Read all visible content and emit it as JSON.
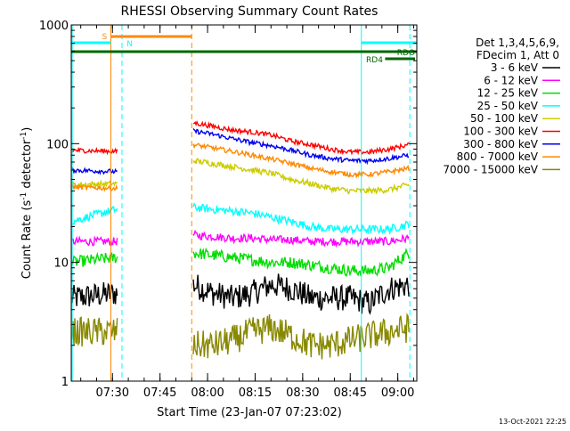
{
  "chart_data": {
    "type": "line",
    "title": "RHESSI Observing Summary Count Rates",
    "xlabel": "Start Time (23-Jan-07 07:23:02)",
    "ylabel_main": "Count Rate (s",
    "ylabel_sup1": "-1",
    "ylabel_mid": " detector",
    "ylabel_sup2": "-1",
    "ylabel_end": ")",
    "y_scale": "log",
    "ylim": [
      1,
      1000
    ],
    "xlim_minutes": [
      437,
      546
    ],
    "x_ticks": [
      {
        "minute": 450,
        "label": "07:30"
      },
      {
        "minute": 465,
        "label": "07:45"
      },
      {
        "minute": 480,
        "label": "08:00"
      },
      {
        "minute": 495,
        "label": "08:15"
      },
      {
        "minute": 510,
        "label": "08:30"
      },
      {
        "minute": 525,
        "label": "08:45"
      },
      {
        "minute": 540,
        "label": "09:00"
      }
    ],
    "y_ticks": [
      {
        "value": 1,
        "label": "1"
      },
      {
        "value": 10,
        "label": "10"
      },
      {
        "value": 100,
        "label": "100"
      },
      {
        "value": 1000,
        "label": "1000"
      }
    ],
    "legend_header": [
      "Det 1,3,4,5,6,9,",
      "FDecim 1, Att 0"
    ],
    "legend_placement": "right",
    "series": [
      {
        "name": "3 - 6 keV",
        "color": "#000000",
        "pre": [
          5,
          5.5
        ],
        "post": [
          6.5,
          5.5,
          5.0,
          5.5,
          6.5,
          6.0,
          5.0,
          5.0,
          5.0,
          4.5,
          6.0,
          6.5
        ],
        "noise": 0.22
      },
      {
        "name": "6 - 12 keV",
        "color": "#ff00ff",
        "pre": [
          15,
          15
        ],
        "post": [
          17,
          16.5,
          16,
          16,
          15.5,
          15.5,
          15,
          15,
          15,
          15,
          15,
          16
        ],
        "noise": 0.07
      },
      {
        "name": "12 - 25 keV",
        "color": "#00dd00",
        "pre": [
          10,
          11
        ],
        "post": [
          12,
          11.5,
          11,
          10.5,
          10,
          10,
          9.5,
          9,
          8.5,
          8.5,
          9,
          12
        ],
        "noise": 0.1
      },
      {
        "name": "25 - 50 keV",
        "color": "#00ffff",
        "pre": [
          22,
          28
        ],
        "post": [
          29,
          28,
          27,
          26,
          24,
          22,
          20,
          19,
          19,
          19,
          19,
          21
        ],
        "noise": 0.07
      },
      {
        "name": "50 - 100 keV",
        "color": "#cccc00",
        "pre": [
          45,
          46
        ],
        "post": [
          72,
          68,
          64,
          60,
          56,
          50,
          46,
          42,
          40,
          40,
          41,
          45
        ],
        "noise": 0.05
      },
      {
        "name": "100 - 300 keV",
        "color": "#ff0000",
        "pre": [
          88,
          86
        ],
        "post": [
          150,
          140,
          130,
          125,
          118,
          105,
          98,
          90,
          85,
          85,
          90,
          98
        ],
        "noise": 0.04
      },
      {
        "name": "300 - 800 keV",
        "color": "#0000ee",
        "pre": [
          60,
          58
        ],
        "post": [
          128,
          120,
          110,
          102,
          96,
          88,
          80,
          75,
          72,
          72,
          75,
          80
        ],
        "noise": 0.04
      },
      {
        "name": "800 - 7000 keV",
        "color": "#ff8800",
        "pre": [
          43,
          42
        ],
        "post": [
          98,
          92,
          86,
          80,
          74,
          68,
          62,
          58,
          55,
          55,
          58,
          62
        ],
        "noise": 0.04
      },
      {
        "name": "7000 - 15000 keV",
        "color": "#888800",
        "pre": [
          2.6,
          2.6
        ],
        "post": [
          2.0,
          2.0,
          2.2,
          2.6,
          2.8,
          2.4,
          2.0,
          2.0,
          2.2,
          2.4,
          2.6,
          2.8
        ],
        "noise": 0.25
      }
    ],
    "data_windows": {
      "pre_minutes": [
        437,
        451.5
      ],
      "post_minutes": [
        475.5,
        543.5
      ]
    },
    "annotations": [
      {
        "label": "S",
        "color": "#ff8800"
      },
      {
        "label": "N",
        "color": "#00ffff"
      },
      {
        "label": "RDO",
        "color": "#006600"
      },
      {
        "label": "RD4",
        "color": "#006600"
      }
    ],
    "footer_date": "13-Oct-2021 22:25"
  }
}
